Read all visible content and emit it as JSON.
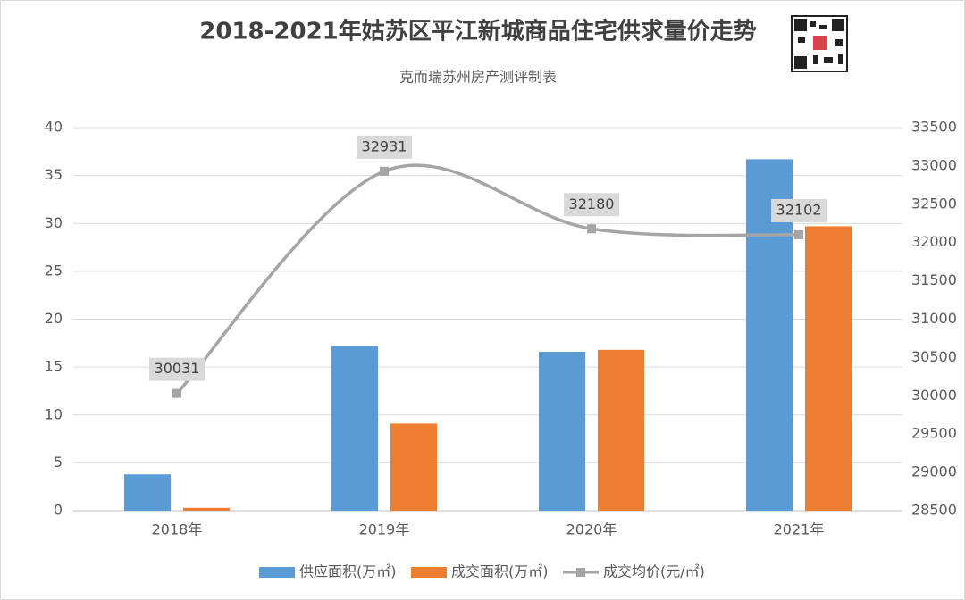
{
  "chart_data": {
    "type": "bar",
    "title": "2018-2021年姑苏区平江新城商品住宅供求量价走势",
    "subtitle": "克而瑞苏州房产测评制表",
    "categories": [
      "2018年",
      "2019年",
      "2020年",
      "2021年"
    ],
    "series": [
      {
        "name": "供应面积(万㎡)",
        "color": "#5b9bd5",
        "values": [
          3.8,
          17.2,
          16.6,
          36.7
        ]
      },
      {
        "name": "成交面积(万㎡)",
        "color": "#ed7d31",
        "values": [
          0.3,
          9.1,
          16.8,
          29.7
        ]
      },
      {
        "name": "成交均价(元/㎡)",
        "color": "#a5a5a5",
        "type": "line",
        "axis": "y2",
        "values": [
          30031,
          32931,
          32180,
          32102
        ]
      }
    ],
    "ylim": [
      0,
      40
    ],
    "yticks": [
      0,
      5,
      10,
      15,
      20,
      25,
      30,
      35,
      40
    ],
    "y2lim": [
      28500,
      33500
    ],
    "y2ticks": [
      28500,
      29000,
      29500,
      30000,
      30500,
      31000,
      31500,
      32000,
      32500,
      33000,
      33500
    ],
    "grid": true,
    "legend": "bottom"
  }
}
